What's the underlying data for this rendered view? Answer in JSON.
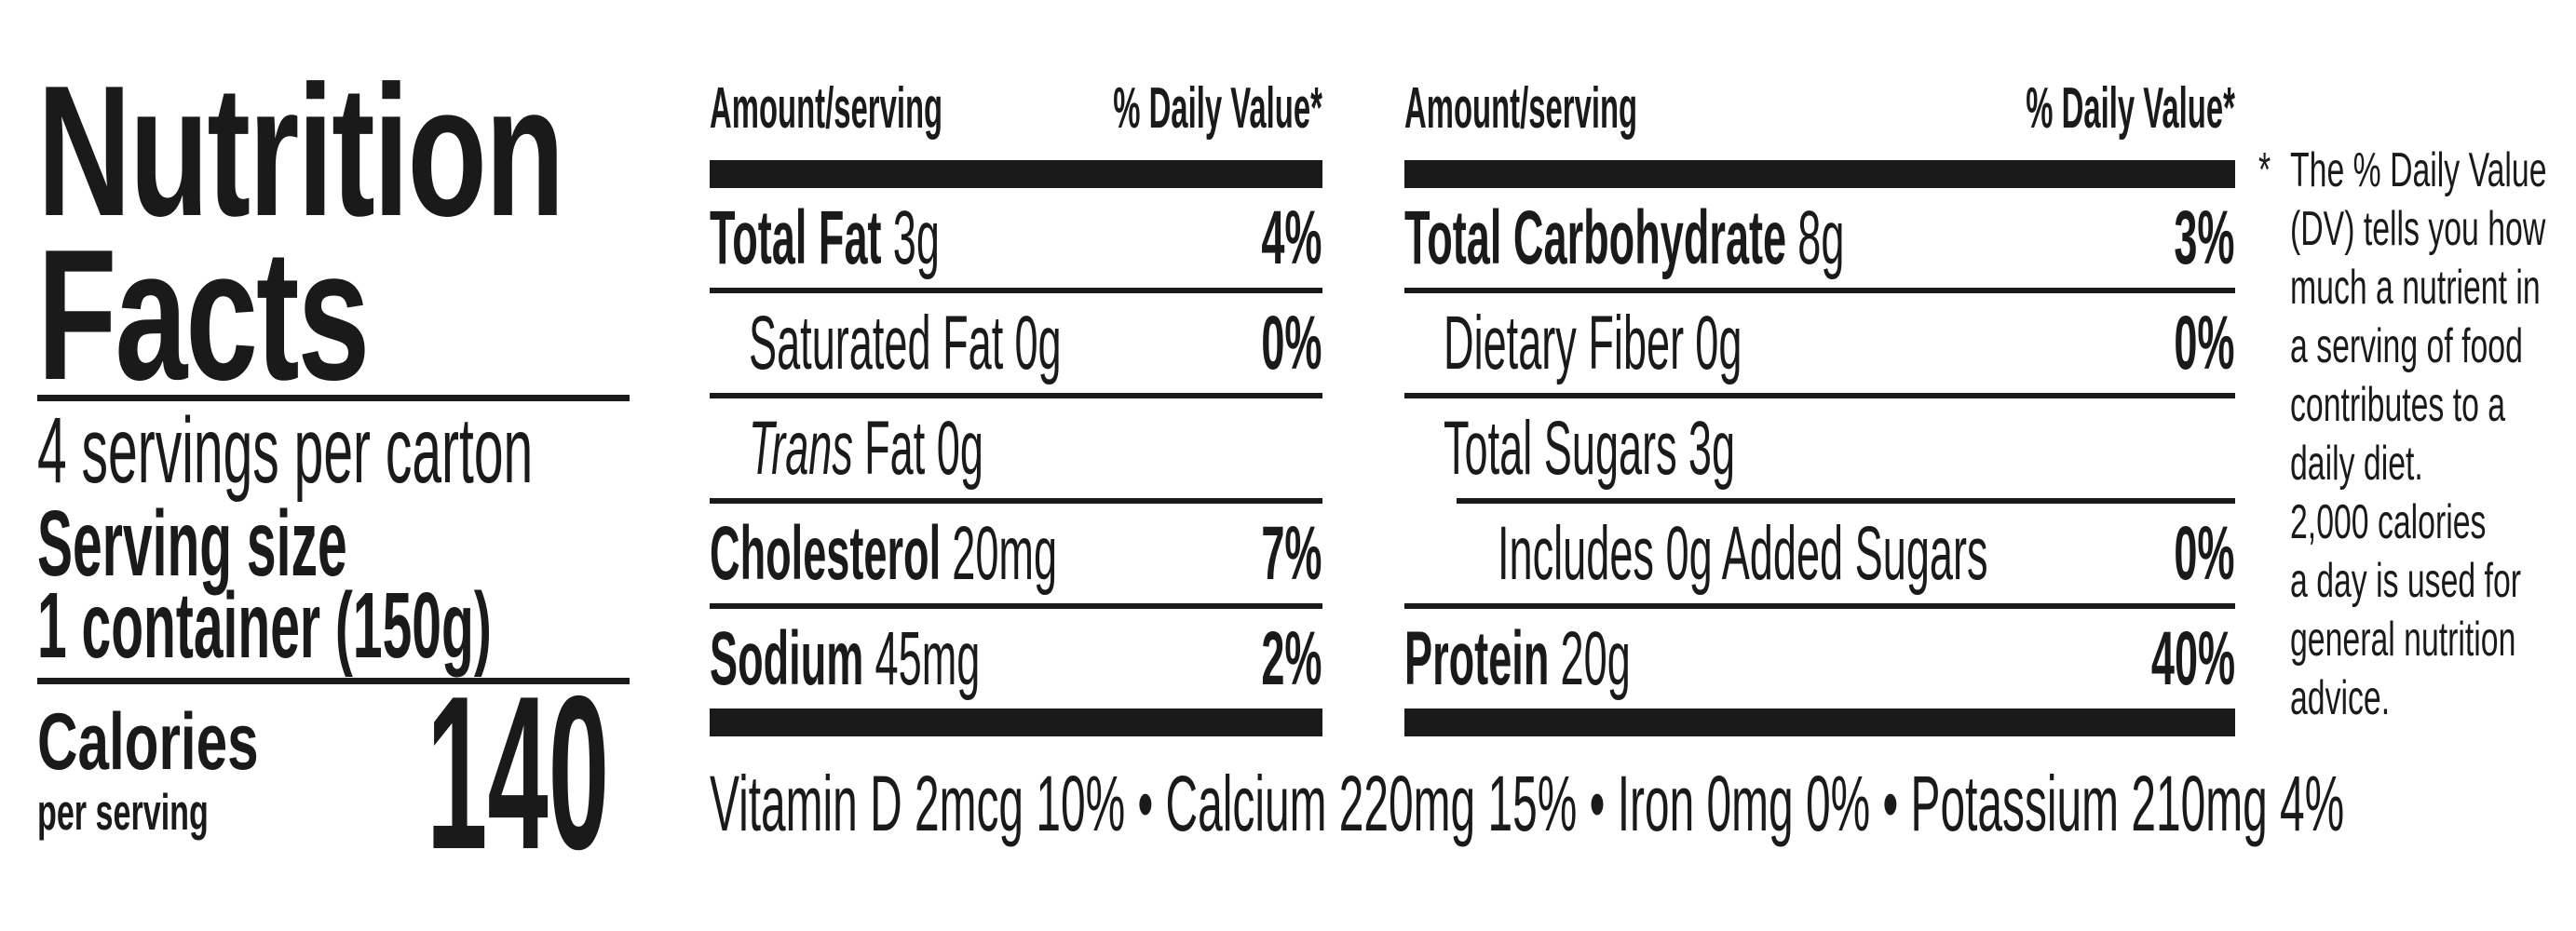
{
  "colors": {
    "ink": "#1a1a1a",
    "background": "#ffffff"
  },
  "left": {
    "title_lines": [
      "Nutrition",
      "Facts"
    ],
    "servings_per_container": "4 servings per carton",
    "serving_size_label": "Serving size",
    "serving_size_value": "1 container (150g)",
    "calories_label": "Calories",
    "calories_sublabel": "per serving",
    "calories_value": "140"
  },
  "columns": [
    {
      "header_left": "Amount/serving",
      "header_right": "% Daily Value*",
      "rows": [
        {
          "name": "Total Fat",
          "amount": "3g",
          "dv": "4%"
        },
        {
          "name": "Saturated Fat",
          "amount": "0g",
          "dv": "0%"
        },
        {
          "name": "Trans",
          "amount": "Fat 0g",
          "dv": ""
        },
        {
          "name": "Cholesterol",
          "amount": "20mg",
          "dv": "7%"
        },
        {
          "name": "Sodium",
          "amount": "45mg",
          "dv": "2%"
        }
      ]
    },
    {
      "header_left": "Amount/serving",
      "header_right": "% Daily Value*",
      "rows": [
        {
          "name": "Total Carbohydrate",
          "amount": "8g",
          "dv": "3%"
        },
        {
          "name": "Dietary Fiber",
          "amount": "0g",
          "dv": "0%"
        },
        {
          "name": "Total Sugars",
          "amount": "3g",
          "dv": ""
        },
        {
          "name": "Includes 0g Added Sugars",
          "amount": "",
          "dv": "0%"
        },
        {
          "name": "Protein",
          "amount": "20g",
          "dv": "40%"
        }
      ]
    }
  ],
  "micronutrients_line": "Vitamin D 2mcg 10% • Calcium 220mg 15% • Iron 0mg 0% • Potassium 210mg 4%",
  "footnote": {
    "marker": "*",
    "lines": [
      "The % Daily Value",
      "(DV) tells you how",
      "much a nutrient in",
      "a serving of food",
      "contributes to a",
      "daily diet.",
      "2,000 calories",
      "a day is used for",
      "general nutrition",
      "advice."
    ]
  }
}
